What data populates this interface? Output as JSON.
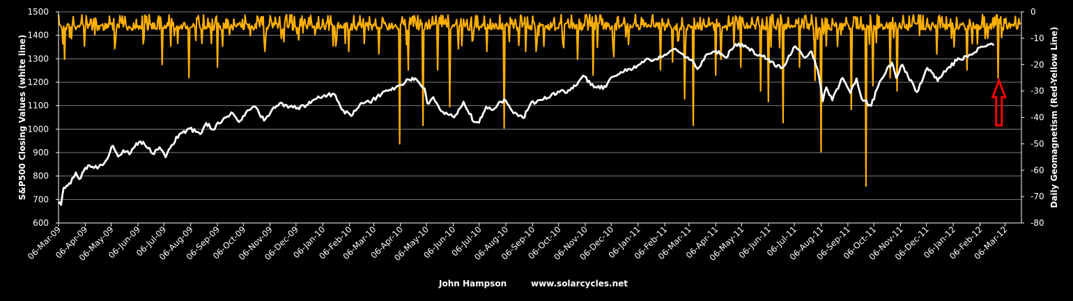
{
  "chart_data": {
    "type": "line",
    "y_left_label": "S&P500 Closing Values (white line)",
    "y_right_label": "Daily Geomagnetism (Red-Yellow Line)",
    "credit_author": "John Hampson",
    "credit_site": "www.solarcycles.net",
    "y_left_lim": [
      600,
      1500
    ],
    "y_left_ticks": [
      "600",
      "700",
      "800",
      "900",
      "1000",
      "1100",
      "1200",
      "1300",
      "1400",
      "1500"
    ],
    "y_right_lim": [
      -80,
      0
    ],
    "y_right_ticks": [
      "0",
      "-10",
      "-20",
      "-30",
      "-40",
      "-50",
      "-60",
      "-70",
      "-80"
    ],
    "x_range": [
      "2009-03-06",
      "2012-03-25"
    ],
    "x_tick_labels": [
      "06-Mar-09",
      "06-Apr-09",
      "06-May-09",
      "06-Jun-09",
      "06-Jul-09",
      "06-Aug-09",
      "06-Sep-09",
      "06-Oct-09",
      "06-Nov-09",
      "06-Dec-09",
      "06-Jan-10",
      "06-Feb-10",
      "06-Mar-10",
      "06-Apr-10",
      "06-May-10",
      "06-Jun-10",
      "06-Jul-10",
      "06-Aug-10",
      "06-Sep-10",
      "06-Oct-10",
      "06-Nov-10",
      "06-Dec-10",
      "06-Jan-11",
      "06-Feb-11",
      "06-Mar-11",
      "06-Apr-11",
      "06-May-11",
      "06-Jun-11",
      "06-Jul-11",
      "06-Aug-11",
      "06-Sep-11",
      "06-Oct-11",
      "06-Nov-11",
      "06-Dec-11",
      "06-Jan-12",
      "06-Feb-12",
      "06-Mar-12"
    ],
    "grid": true,
    "colors": {
      "background": "#000000",
      "grid": "#808080",
      "sp500": "#ffffff",
      "geomagnetism": "#ffb000",
      "arrow": "#ff0000"
    },
    "series": [
      {
        "name": "S&P500",
        "axis": "left",
        "points": [
          [
            "2009-03-06",
            683
          ],
          [
            "2009-03-09",
            677
          ],
          [
            "2009-03-12",
            750
          ],
          [
            "2009-03-20",
            768
          ],
          [
            "2009-03-26",
            815
          ],
          [
            "2009-03-30",
            787
          ],
          [
            "2009-04-06",
            835
          ],
          [
            "2009-04-14",
            840
          ],
          [
            "2009-04-20",
            832
          ],
          [
            "2009-04-28",
            855
          ],
          [
            "2009-05-08",
            929
          ],
          [
            "2009-05-14",
            883
          ],
          [
            "2009-05-20",
            910
          ],
          [
            "2009-05-27",
            893
          ],
          [
            "2009-06-04",
            940
          ],
          [
            "2009-06-12",
            946
          ],
          [
            "2009-06-23",
            895
          ],
          [
            "2009-07-01",
            923
          ],
          [
            "2009-07-08",
            880
          ],
          [
            "2009-07-15",
            932
          ],
          [
            "2009-07-24",
            979
          ],
          [
            "2009-08-05",
            1002
          ],
          [
            "2009-08-17",
            979
          ],
          [
            "2009-08-24",
            1026
          ],
          [
            "2009-09-01",
            998
          ],
          [
            "2009-09-14",
            1049
          ],
          [
            "2009-09-22",
            1071
          ],
          [
            "2009-10-01",
            1030
          ],
          [
            "2009-10-09",
            1071
          ],
          [
            "2009-10-19",
            1097
          ],
          [
            "2009-10-30",
            1036
          ],
          [
            "2009-11-10",
            1093
          ],
          [
            "2009-11-17",
            1110
          ],
          [
            "2009-11-27",
            1091
          ],
          [
            "2009-12-08",
            1091
          ],
          [
            "2009-12-18",
            1102
          ],
          [
            "2009-12-28",
            1127
          ],
          [
            "2010-01-08",
            1145
          ],
          [
            "2010-01-19",
            1150
          ],
          [
            "2010-01-28",
            1084
          ],
          [
            "2010-02-08",
            1056
          ],
          [
            "2010-02-18",
            1106
          ],
          [
            "2010-03-01",
            1115
          ],
          [
            "2010-03-15",
            1150
          ],
          [
            "2010-03-26",
            1166
          ],
          [
            "2010-04-06",
            1189
          ],
          [
            "2010-04-15",
            1212
          ],
          [
            "2010-04-23",
            1217
          ],
          [
            "2010-05-04",
            1173
          ],
          [
            "2010-05-07",
            1110
          ],
          [
            "2010-05-14",
            1136
          ],
          [
            "2010-05-25",
            1074
          ],
          [
            "2010-06-07",
            1050
          ],
          [
            "2010-06-18",
            1117
          ],
          [
            "2010-06-30",
            1031
          ],
          [
            "2010-07-06",
            1028
          ],
          [
            "2010-07-14",
            1095
          ],
          [
            "2010-07-20",
            1083
          ],
          [
            "2010-08-04",
            1127
          ],
          [
            "2010-08-13",
            1079
          ],
          [
            "2010-08-26",
            1047
          ],
          [
            "2010-09-03",
            1104
          ],
          [
            "2010-09-15",
            1125
          ],
          [
            "2010-09-27",
            1142
          ],
          [
            "2010-10-07",
            1158
          ],
          [
            "2010-10-19",
            1165
          ],
          [
            "2010-11-05",
            1225
          ],
          [
            "2010-11-16",
            1178
          ],
          [
            "2010-11-30",
            1180
          ],
          [
            "2010-12-07",
            1223
          ],
          [
            "2010-12-17",
            1243
          ],
          [
            "2010-12-31",
            1257
          ],
          [
            "2011-01-14",
            1293
          ],
          [
            "2011-01-27",
            1299
          ],
          [
            "2011-02-04",
            1310
          ],
          [
            "2011-02-18",
            1343
          ],
          [
            "2011-03-01",
            1306
          ],
          [
            "2011-03-10",
            1295
          ],
          [
            "2011-03-16",
            1256
          ],
          [
            "2011-03-25",
            1313
          ],
          [
            "2011-04-06",
            1335
          ],
          [
            "2011-04-18",
            1305
          ],
          [
            "2011-04-29",
            1363
          ],
          [
            "2011-05-10",
            1357
          ],
          [
            "2011-05-23",
            1317
          ],
          [
            "2011-06-01",
            1314
          ],
          [
            "2011-06-15",
            1265
          ],
          [
            "2011-06-24",
            1268
          ],
          [
            "2011-07-07",
            1353
          ],
          [
            "2011-07-18",
            1305
          ],
          [
            "2011-07-26",
            1331
          ],
          [
            "2011-08-02",
            1254
          ],
          [
            "2011-08-08",
            1119
          ],
          [
            "2011-08-12",
            1178
          ],
          [
            "2011-08-19",
            1123
          ],
          [
            "2011-08-31",
            1218
          ],
          [
            "2011-09-09",
            1154
          ],
          [
            "2011-09-16",
            1216
          ],
          [
            "2011-09-22",
            1129
          ],
          [
            "2011-10-03",
            1099
          ],
          [
            "2011-10-13",
            1203
          ],
          [
            "2011-10-27",
            1284
          ],
          [
            "2011-11-01",
            1218
          ],
          [
            "2011-11-08",
            1275
          ],
          [
            "2011-11-25",
            1158
          ],
          [
            "2011-12-07",
            1261
          ],
          [
            "2011-12-19",
            1205
          ],
          [
            "2011-12-30",
            1257
          ],
          [
            "2012-01-10",
            1292
          ],
          [
            "2012-01-26",
            1318
          ],
          [
            "2012-02-09",
            1351
          ],
          [
            "2012-02-17",
            1361
          ],
          [
            "2012-02-22",
            1357
          ]
        ]
      },
      {
        "name": "Daily Geomagnetism",
        "axis": "right",
        "dense_baseline": [
          -4,
          -7
        ],
        "dense_frequency": "daily",
        "points": [
          [
            "2009-03-06",
            -1
          ],
          [
            "2009-03-13",
            -18
          ],
          [
            "2009-04-05",
            -13
          ],
          [
            "2009-05-10",
            -14
          ],
          [
            "2009-06-13",
            -10
          ],
          [
            "2009-07-04",
            -20
          ],
          [
            "2009-07-22",
            -12
          ],
          [
            "2009-08-04",
            -25
          ],
          [
            "2009-08-19",
            -12
          ],
          [
            "2009-08-30",
            -12
          ],
          [
            "2009-09-06",
            -21
          ],
          [
            "2009-10-14",
            -9
          ],
          [
            "2009-10-31",
            -15
          ],
          [
            "2009-12-14",
            -8
          ],
          [
            "2010-01-21",
            -13
          ],
          [
            "2010-02-05",
            -15
          ],
          [
            "2010-02-23",
            -12
          ],
          [
            "2010-03-12",
            -16
          ],
          [
            "2010-04-05",
            -50
          ],
          [
            "2010-04-15",
            -22
          ],
          [
            "2010-05-02",
            -43
          ],
          [
            "2010-05-19",
            -22
          ],
          [
            "2010-06-02",
            -36
          ],
          [
            "2010-06-12",
            -14
          ],
          [
            "2010-07-15",
            -15
          ],
          [
            "2010-08-04",
            -44
          ],
          [
            "2010-08-29",
            -15
          ],
          [
            "2010-09-10",
            -15
          ],
          [
            "2010-10-11",
            -12
          ],
          [
            "2010-10-28",
            -18
          ],
          [
            "2010-11-15",
            -24
          ],
          [
            "2010-12-09",
            -17
          ],
          [
            "2011-02-01",
            -22
          ],
          [
            "2011-02-15",
            -19
          ],
          [
            "2011-03-01",
            -33
          ],
          [
            "2011-03-11",
            -43
          ],
          [
            "2011-04-06",
            -24
          ],
          [
            "2011-04-12",
            -18
          ],
          [
            "2011-05-05",
            -21
          ],
          [
            "2011-05-28",
            -30
          ],
          [
            "2011-06-06",
            -34
          ],
          [
            "2011-06-23",
            -42
          ],
          [
            "2011-07-12",
            -21
          ],
          [
            "2011-07-30",
            -26
          ],
          [
            "2011-08-06",
            -53
          ],
          [
            "2011-09-10",
            -37
          ],
          [
            "2011-09-27",
            -66
          ],
          [
            "2011-10-05",
            -28
          ],
          [
            "2011-10-25",
            -25
          ],
          [
            "2011-11-02",
            -30
          ],
          [
            "2011-12-18",
            -16
          ],
          [
            "2012-01-22",
            -22
          ],
          [
            "2012-02-15",
            -10
          ],
          [
            "2012-02-27",
            -25
          ]
        ]
      }
    ],
    "annotations": [
      {
        "type": "arrow",
        "direction": "up",
        "x": "2012-02-28",
        "y_tip": -26,
        "y_base": -43,
        "color": "#ff0000"
      }
    ]
  }
}
